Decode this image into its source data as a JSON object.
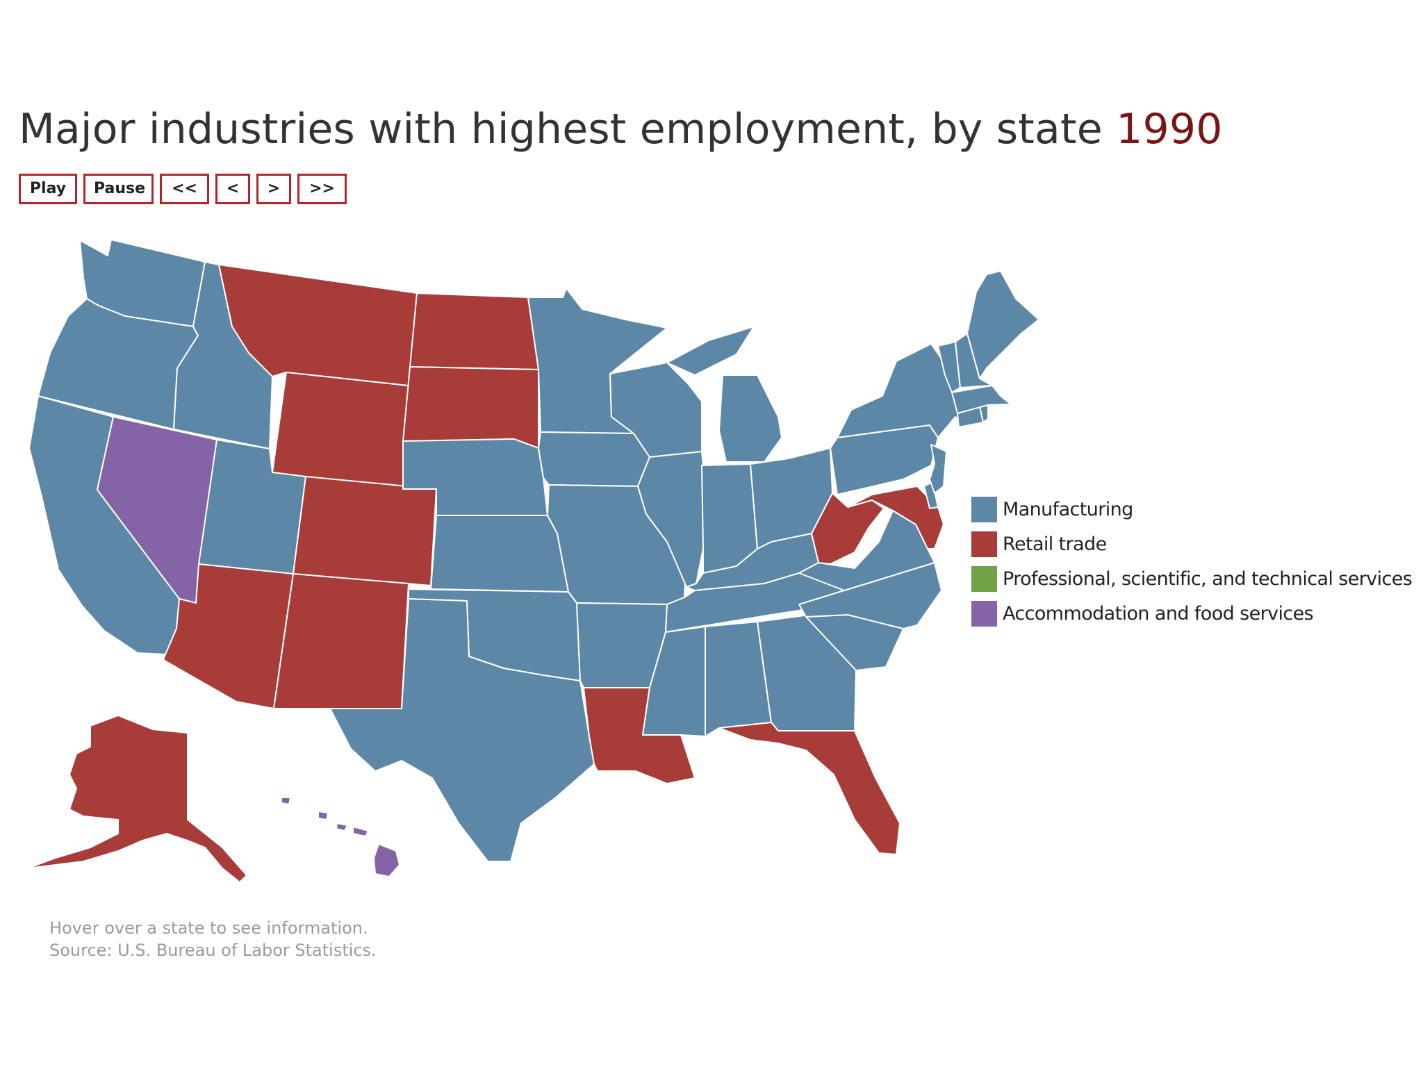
{
  "title": {
    "text": "Major industries with highest employment, by state",
    "year": "1990"
  },
  "controls": {
    "play": "Play",
    "pause": "Pause",
    "first": "<<",
    "prev": "<",
    "next": ">",
    "last": ">>"
  },
  "legend": {
    "items": [
      {
        "label": "Manufacturing",
        "color": "#5d87a6"
      },
      {
        "label": "Retail trade",
        "color": "#a83c38"
      },
      {
        "label": "Professional, scientific, and technical services",
        "color": "#72a248"
      },
      {
        "label": "Accommodation and food services",
        "color": "#8463a6"
      }
    ]
  },
  "footer": {
    "hint": "Hover over a state to see information.",
    "source": "Source: U.S. Bureau of Labor Statistics."
  },
  "map_data": {
    "manufacturing": [
      "WA",
      "OR",
      "CA",
      "ID",
      "UT",
      "MN",
      "WI",
      "MI",
      "IA",
      "NE",
      "KS",
      "OK",
      "TX",
      "MO",
      "AR",
      "IL",
      "IN",
      "OH",
      "KY",
      "TN",
      "MS",
      "AL",
      "GA",
      "SC",
      "NC",
      "VA",
      "PA",
      "NY",
      "NJ",
      "CT",
      "RI",
      "MA",
      "VT",
      "NH",
      "ME",
      "DE"
    ],
    "retail_trade": [
      "MT",
      "WY",
      "CO",
      "ND",
      "SD",
      "AZ",
      "NM",
      "LA",
      "FL",
      "WV",
      "MD",
      "AK"
    ],
    "accommodation_and_food_services": [
      "NV",
      "HI"
    ],
    "professional_scientific_technical": []
  }
}
